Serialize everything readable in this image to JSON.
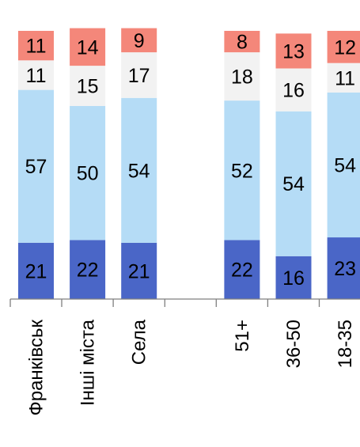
{
  "chart_data": {
    "type": "bar",
    "stacked": true,
    "orientation": "vertical",
    "categories": [
      "Франківськ",
      "Інші міста",
      "Села",
      "",
      "51+",
      "36-50",
      "18-35"
    ],
    "series": [
      {
        "key": "s1",
        "color": "#4a66c7",
        "values": [
          21,
          22,
          21,
          null,
          22,
          16,
          23
        ]
      },
      {
        "key": "s2",
        "color": "#b5dcf6",
        "values": [
          57,
          50,
          54,
          null,
          52,
          54,
          54
        ]
      },
      {
        "key": "s3",
        "color": "#f2f2f2",
        "values": [
          11,
          15,
          17,
          null,
          18,
          16,
          11
        ]
      },
      {
        "key": "s4",
        "color": "#f4877a",
        "values": [
          11,
          14,
          9,
          null,
          8,
          13,
          12
        ]
      }
    ],
    "ylim": [
      0,
      100
    ],
    "xlabel": "",
    "ylabel": "",
    "grid": false,
    "legend": "none",
    "axis_color": "#7f7f7f"
  }
}
